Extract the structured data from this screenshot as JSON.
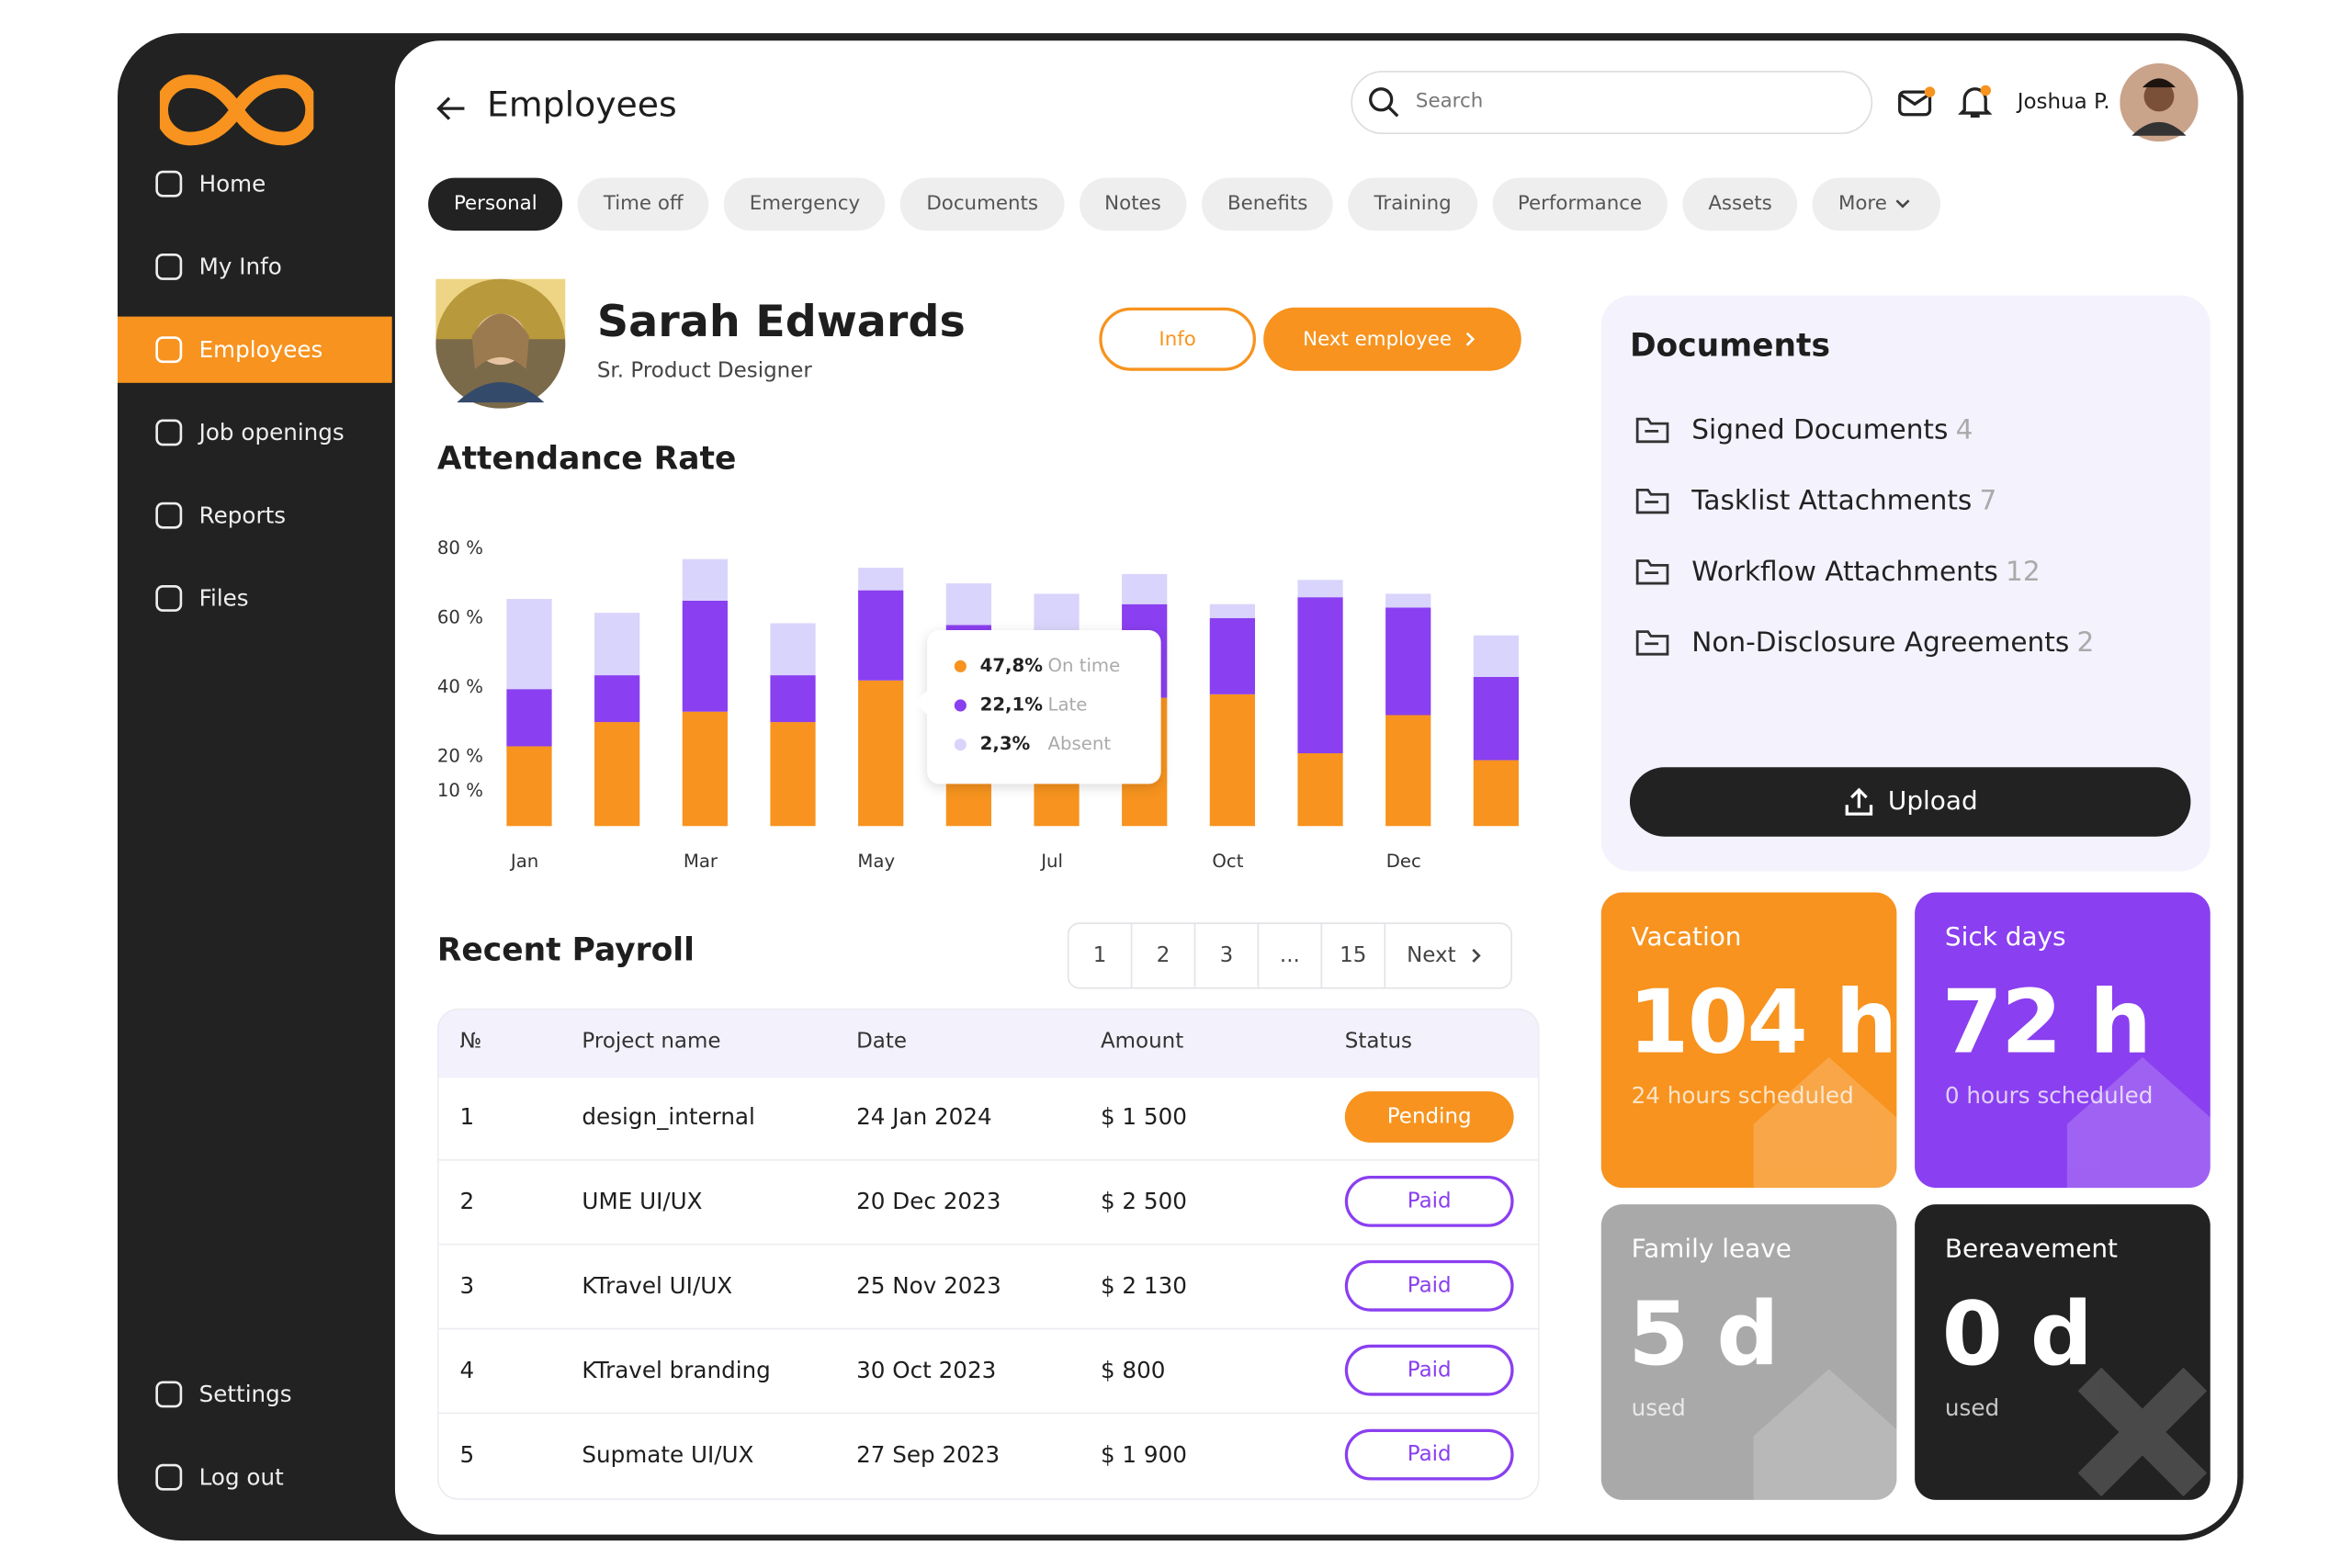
{
  "sidebar": {
    "nav": [
      "Home",
      "My Info",
      "Employees",
      "Job openings",
      "Reports",
      "Files"
    ],
    "footer": [
      "Settings",
      "Log out"
    ]
  },
  "header": {
    "title": "Employees",
    "search_placeholder": "Search",
    "user": "Joshua P."
  },
  "tabs": [
    "Personal",
    "Time off",
    "Emergency",
    "Documents",
    "Notes",
    "Benefits",
    "Training",
    "Performance",
    "Assets",
    "More"
  ],
  "profile": {
    "name": "Sarah Edwards",
    "role": "Sr. Product Designer",
    "buttons": [
      "Info",
      "Next employee"
    ]
  },
  "chart_data": {
    "type": "stacked-bar",
    "title": "Attendance Rate",
    "categories": [
      "Jan",
      null,
      "Mar",
      null,
      "May",
      null,
      "Jul",
      null,
      "Oct",
      null,
      "Dec",
      null
    ],
    "series": [
      {
        "name": "On time",
        "color": "#f7931e",
        "values": [
          23,
          30,
          33,
          30,
          42,
          30,
          30,
          37,
          38,
          21,
          32,
          19
        ]
      },
      {
        "name": "Late",
        "color": "#8a3ff0",
        "values": [
          16.5,
          13.5,
          32,
          13.5,
          26,
          28,
          25,
          27,
          22,
          45,
          31,
          24
        ]
      },
      {
        "name": "Absent",
        "color": "#d9d4fb",
        "values": [
          26,
          18,
          12,
          15,
          6.5,
          12,
          12,
          8.7,
          4,
          5,
          4,
          12
        ]
      }
    ],
    "ylim": [
      0,
      80
    ],
    "yticks": [
      {
        "value": 80,
        "label": "80 %"
      },
      {
        "value": 60,
        "label": "60 %"
      },
      {
        "value": 40,
        "label": "40 %"
      },
      {
        "value": 20,
        "label": "20 %"
      },
      {
        "value": 10,
        "label": "10 %"
      }
    ],
    "grid": false,
    "tooltip": [
      "47,8%",
      "22,1%",
      "2,3%"
    ]
  },
  "payroll": {
    "title": "Recent Payroll",
    "pagination": [
      "1",
      "2",
      "3",
      "...",
      "15",
      "Next"
    ],
    "columns": [
      "№",
      "Project name",
      "Date",
      "Amount",
      "Status"
    ],
    "rows": [
      [
        "1",
        "design_internal",
        "24 Jan 2024",
        "$ 1 500",
        "Pending"
      ],
      [
        "2",
        "UME UI/UX",
        "20 Dec 2023",
        "$ 2 500",
        "Paid"
      ],
      [
        "3",
        "KTravel UI/UX",
        "25 Nov 2023",
        "$ 2 130",
        "Paid"
      ],
      [
        "4",
        "KTravel branding",
        "30 Oct 2023",
        "$ 800",
        "Paid"
      ],
      [
        "5",
        "Supmate UI/UX",
        "27 Sep 2023",
        "$ 1 900",
        "Paid"
      ]
    ]
  },
  "documents": {
    "title": "Documents",
    "items": [
      {
        "name": "Signed Documents",
        "count": "4"
      },
      {
        "name": "Tasklist Attachments",
        "count": "7"
      },
      {
        "name": "Workflow Attachments",
        "count": "12"
      },
      {
        "name": "Non-Disclosure Agreements",
        "count": "2"
      }
    ],
    "button": "Upload"
  },
  "cards": [
    {
      "title": "Vacation",
      "value": "104 h",
      "note": "24 hours scheduled"
    },
    {
      "title": "Sick days",
      "value": "72 h",
      "note": "0 hours scheduled"
    },
    {
      "title": "Family leave",
      "value": "5 d",
      "note": "used"
    },
    {
      "title": "Bereavement",
      "value": "0 d",
      "note": "used"
    }
  ]
}
